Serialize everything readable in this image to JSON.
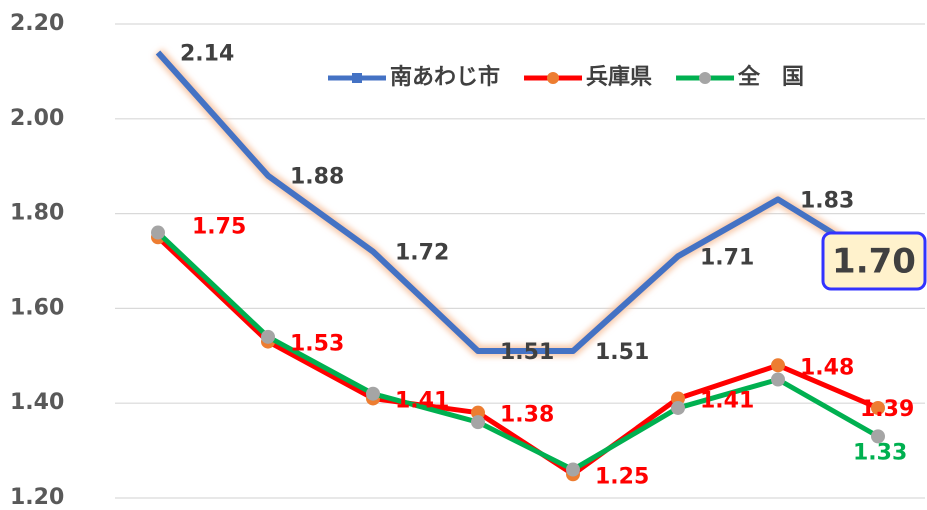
{
  "chart_data": {
    "type": "line",
    "categories": [
      null,
      null,
      null,
      null,
      null,
      null,
      null,
      null
    ],
    "ylim": [
      1.2,
      2.2
    ],
    "yticks": [
      {
        "value": 1.2,
        "label": "1.20"
      },
      {
        "value": 1.4,
        "label": "1.40"
      },
      {
        "value": 1.6,
        "label": "1.60"
      },
      {
        "value": 1.8,
        "label": "1.80"
      },
      {
        "value": 2.0,
        "label": "2.00"
      },
      {
        "value": 2.2,
        "label": "2.20"
      }
    ],
    "grid": true,
    "legend": "top-right",
    "series": [
      {
        "name": "南あわじ市",
        "color": "#4472c4",
        "marker_color": "#4472c4",
        "label_color": "#404040",
        "values": [
          2.14,
          1.88,
          1.72,
          1.51,
          1.51,
          1.71,
          1.83,
          1.7
        ],
        "value_labels": [
          "2.14",
          "1.88",
          "1.72",
          "1.51",
          "1.51",
          "1.71",
          "1.83",
          "1.70"
        ]
      },
      {
        "name": "兵庫県",
        "color": "#ff0000",
        "marker_color": "#ed7d31",
        "label_color": "#ff0000",
        "values": [
          1.75,
          1.53,
          1.41,
          1.38,
          1.25,
          1.41,
          1.48,
          1.39
        ],
        "value_labels": [
          "1.75",
          "1.53",
          "1.41",
          "1.38",
          "1.25",
          "1.41",
          "1.48",
          "1.39"
        ]
      },
      {
        "name": "全　国",
        "color": "#00b050",
        "marker_color": "#a5a5a5",
        "label_color": "#00b050",
        "values": [
          1.76,
          1.54,
          1.42,
          1.36,
          1.26,
          1.39,
          1.45,
          1.33
        ],
        "value_labels": [
          null,
          null,
          null,
          null,
          null,
          null,
          null,
          "1.33"
        ]
      }
    ]
  }
}
